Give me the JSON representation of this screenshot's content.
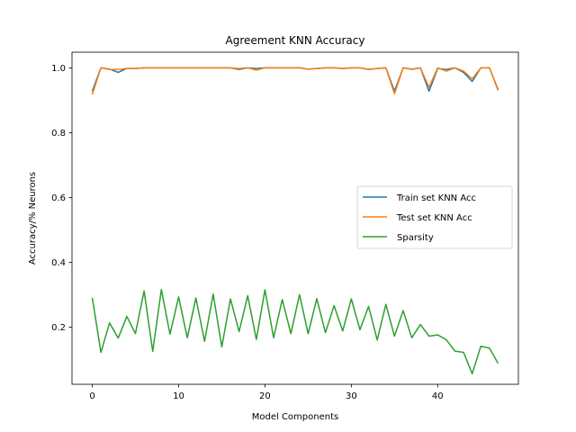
{
  "chart_data": {
    "type": "line",
    "title": "Agreement KNN Accuracy",
    "xlabel": "Model Components",
    "ylabel": "Accuracy/% Neurons",
    "xlim": [
      -2.35,
      49.35
    ],
    "ylim": [
      0.0235,
      1.0483
    ],
    "xticks": [
      0,
      10,
      20,
      30,
      40
    ],
    "yticks": [
      0.2,
      0.4,
      0.6,
      0.8,
      1.0
    ],
    "xtick_labels": [
      "0",
      "10",
      "20",
      "30",
      "40"
    ],
    "ytick_labels": [
      "0.2",
      "0.4",
      "0.6",
      "0.8",
      "1.0"
    ],
    "grid": false,
    "legend_position": "center right",
    "x": [
      0,
      1,
      2,
      3,
      4,
      5,
      6,
      7,
      8,
      9,
      10,
      11,
      12,
      13,
      14,
      15,
      16,
      17,
      18,
      19,
      20,
      21,
      22,
      23,
      24,
      25,
      26,
      27,
      28,
      29,
      30,
      31,
      32,
      33,
      34,
      35,
      36,
      37,
      38,
      39,
      40,
      41,
      42,
      43,
      44,
      45,
      46,
      47
    ],
    "series": [
      {
        "name": "Train set KNN Acc",
        "color": "#1f77b4",
        "values": [
          0.928,
          1.0,
          0.996,
          0.986,
          0.998,
          0.998,
          1.0,
          1.0,
          1.0,
          1.0,
          1.0,
          1.0,
          1.0,
          1.0,
          1.0,
          1.0,
          1.0,
          0.995,
          1.0,
          0.998,
          1.0,
          1.0,
          1.0,
          1.0,
          1.0,
          0.996,
          0.998,
          1.0,
          1.0,
          0.998,
          1.0,
          1.0,
          0.995,
          0.998,
          1.0,
          0.928,
          1.0,
          0.996,
          1.0,
          0.928,
          0.998,
          0.995,
          1.0,
          0.986,
          0.958,
          1.0,
          1.0,
          0.931
        ]
      },
      {
        "name": "Test set KNN Acc",
        "color": "#ff7f0e",
        "values": [
          0.918,
          1.0,
          0.995,
          0.995,
          0.998,
          0.998,
          1.0,
          1.0,
          1.0,
          1.0,
          1.0,
          1.0,
          1.0,
          1.0,
          1.0,
          1.0,
          1.0,
          0.998,
          1.0,
          0.993,
          1.0,
          1.0,
          1.0,
          1.0,
          1.0,
          0.996,
          0.998,
          1.0,
          1.0,
          0.998,
          1.0,
          1.0,
          0.996,
          0.998,
          1.0,
          0.92,
          1.0,
          0.995,
          1.0,
          0.94,
          1.0,
          0.99,
          1.0,
          0.99,
          0.966,
          1.0,
          1.0,
          0.934
        ]
      },
      {
        "name": "Sparsity",
        "color": "#2ca02c",
        "values": [
          0.29,
          0.122,
          0.213,
          0.166,
          0.233,
          0.18,
          0.312,
          0.125,
          0.316,
          0.178,
          0.293,
          0.167,
          0.29,
          0.156,
          0.302,
          0.139,
          0.287,
          0.186,
          0.297,
          0.162,
          0.315,
          0.167,
          0.285,
          0.18,
          0.3,
          0.18,
          0.288,
          0.183,
          0.266,
          0.188,
          0.287,
          0.192,
          0.264,
          0.16,
          0.27,
          0.172,
          0.251,
          0.167,
          0.208,
          0.172,
          0.176,
          0.161,
          0.126,
          0.122,
          0.056,
          0.141,
          0.135,
          0.088
        ]
      }
    ]
  }
}
